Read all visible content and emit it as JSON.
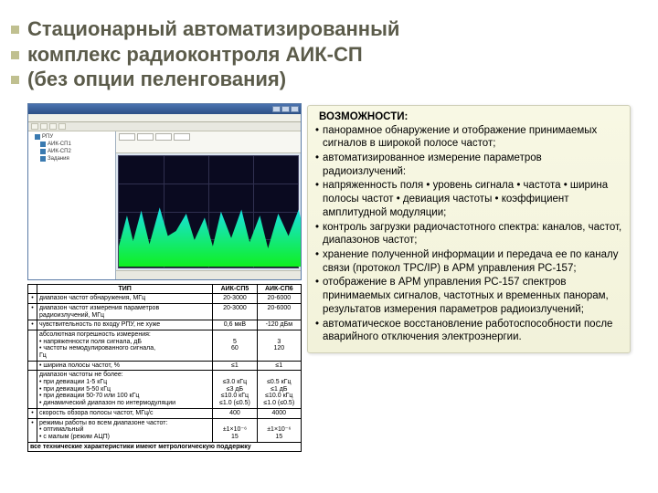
{
  "title": {
    "line1": "Стационарный автоматизированный",
    "line2": "комплекс радиоконтроля  АИК-СП",
    "line3": "(без опции пеленгования)",
    "color": "#5b5b4a",
    "bullet_color": "#c0c090"
  },
  "screenshot": {
    "bg_color": "#dce6f0",
    "titlebar_gradient": [
      "#4a73b0",
      "#2c4f85"
    ],
    "spectrum_bg": "#0a0a20",
    "spectrum_fill_top": "#18e0e8",
    "spectrum_fill_bottom": "#10f020",
    "tree_items": [
      "РПУ",
      "АИК-СП1",
      "АИК-СП2",
      "Задания"
    ]
  },
  "spec_table": {
    "columns": [
      "",
      "ТИП",
      "АИК-СП5",
      "АИК-СП6"
    ],
    "rows": [
      [
        "•",
        "диапазон частот обнаружения, МГц",
        "20-3000",
        "20-6000"
      ],
      [
        "•",
        "диапазон частот измерения параметров\nрадиоизлучений, МГц",
        "20-3000",
        "20-6000"
      ],
      [
        "•",
        "чувствительность по входу РПУ, не хуже",
        "0,6 мкВ",
        "-120 дБм"
      ],
      [
        "",
        "абсолютная погрешность измерения:\n• напряженности поля сигнала, дБ\n• частоты немодулированного сигнала,\nГц",
        "\n5\n60",
        "\n3\n120"
      ],
      [
        "",
        "• ширина полосы частот, %",
        "≤1",
        "≤1"
      ],
      [
        "",
        "диапазон частоты не более:\n• при девиации 1-5 кГц\n• при девиации 5-50 кГц\n• при девиации 50-70 или 100 кГц\n• динамический диапазон по интермодуляции",
        "\n≤3.0 кГц\n≤3 дБ\n≤10.0 кГц\n≤1.0 (≤0.5)",
        "\n≤0.5 кГц\n≤1 дБ\n≤10.0 кГц\n≤1.0 (≤0.5)"
      ],
      [
        "•",
        "скорость обзора полосы частот, МГц/с",
        "400",
        "4000"
      ],
      [
        "•",
        "режимы работы во всем диапазоне частот:\n• оптимальный\n• с малым (режим АЦП)",
        "\n±1×10⁻⁶\n15",
        "\n±1×10⁻⁶\n15"
      ],
      [
        "",
        "все технические характеристики имеют метрологическую поддержку",
        "",
        ""
      ]
    ],
    "font_size_pt": 5
  },
  "capabilities": {
    "heading": "ВОЗМОЖНОСТИ:",
    "items": [
      "панорамное обнаружение и отображение принимаемых сигналов в широкой полосе частот;",
      "автоматизированное  измерение параметров радиоизлучений:",
      "напряженность поля • уровень сигнала • частота • ширина полосы частот •  девиация частоты • коэффициент амплитудной модуляции;",
      "контроль загрузки радиочастотного спектра: каналов, частот, диапазонов частот;",
      "хранение полученной информации и передача ее по каналу связи (протокол TPC/IP) в АРМ управления РС-157;",
      "отображение в АРМ управления РС-157 спектров принимаемых сигналов, частотных и временных панорам, результатов измерения параметров радиоизлучений;",
      "автоматическое восстановление работоспособности после аварийного отключения электроэнергии."
    ],
    "panel_bg_top": "#f8f8e4",
    "panel_bg_bottom": "#f2f2da",
    "border_color": "#d0d0b8",
    "font_size_pt": 9
  }
}
